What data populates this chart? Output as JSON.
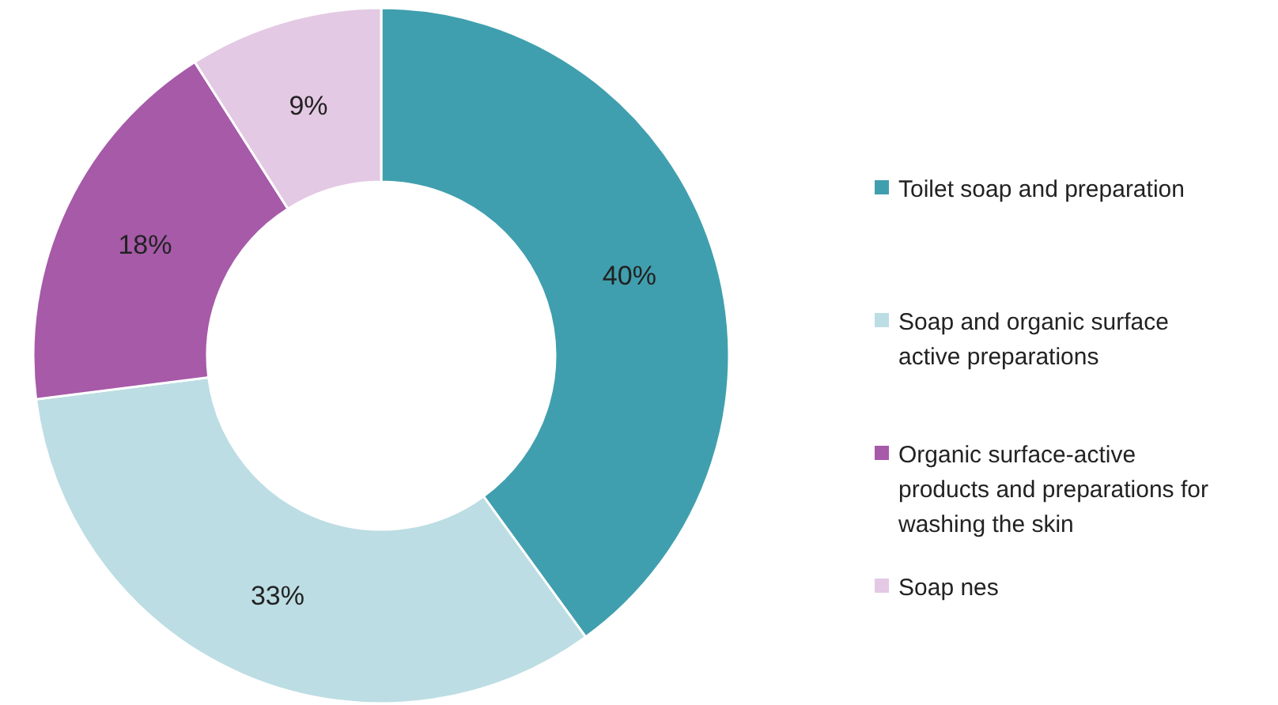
{
  "chart_data": {
    "type": "donut",
    "categories": [
      "Toilet soap and preparation",
      "Soap and organic surface active preparations",
      "Organic surface-active products and preparations for washing the skin",
      "Soap nes"
    ],
    "values": [
      40,
      33,
      18,
      9
    ],
    "colors": [
      "#409fae",
      "#bcdde3",
      "#a65aa8",
      "#e3c9e3"
    ],
    "value_labels": [
      "40%",
      "33%",
      "18%",
      "9%"
    ],
    "legend": "right"
  }
}
